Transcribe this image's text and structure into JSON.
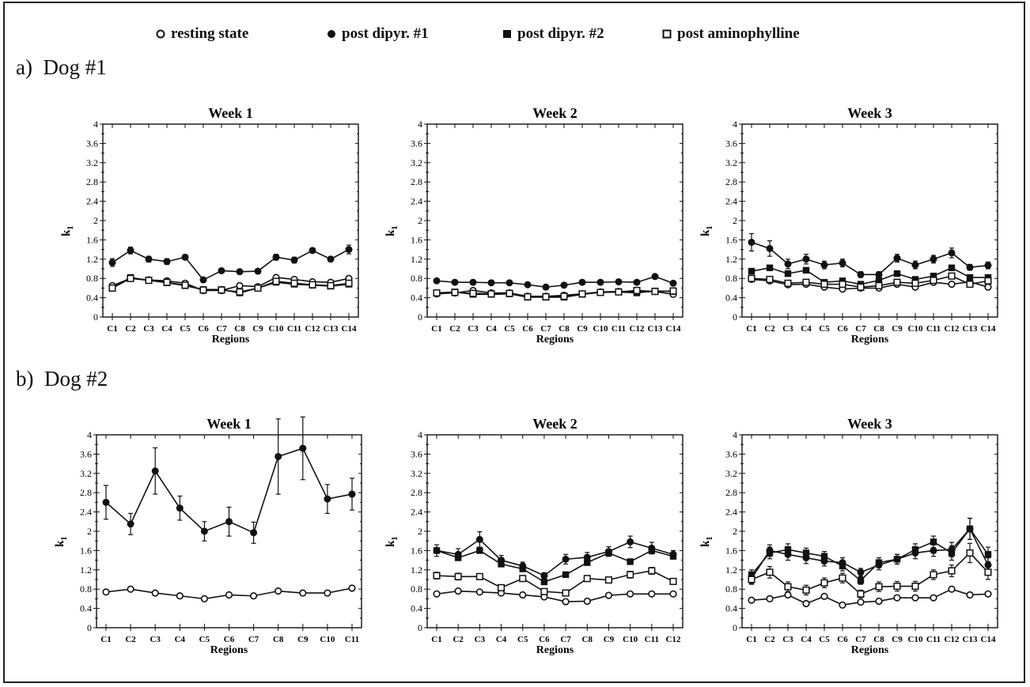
{
  "legend": [
    {
      "label": "resting state",
      "marker": "circle-open"
    },
    {
      "label": "post dipyr. #1",
      "marker": "circle-filled"
    },
    {
      "label": "post dipyr. #2",
      "marker": "square-filled"
    },
    {
      "label": "post aminophylline",
      "marker": "square-open"
    }
  ],
  "sections": [
    {
      "label": "a)",
      "title": "Dog #1"
    },
    {
      "label": "b)",
      "title": "Dog #2"
    }
  ],
  "chart_data": [
    {
      "type": "line",
      "title": "Week  1",
      "xlabel": "Regions",
      "ylabel": "k1",
      "ylim": [
        0,
        4
      ],
      "yticks": [
        "0",
        "0.4",
        "0.8",
        "1.2",
        "1.6",
        "2",
        "2.4",
        "2.8",
        "3.2",
        "3.6",
        "4"
      ],
      "categories": [
        "C1",
        "C2",
        "C3",
        "C4",
        "C5",
        "C6",
        "C7",
        "C8",
        "C9",
        "C10",
        "C11",
        "C12",
        "C13",
        "C14"
      ],
      "series": [
        {
          "marker": "circle-open",
          "values": [
            0.65,
            0.8,
            0.77,
            0.75,
            0.7,
            0.55,
            0.55,
            0.65,
            0.63,
            0.82,
            0.78,
            0.73,
            0.72,
            0.8
          ]
        },
        {
          "marker": "circle-filled",
          "values": [
            1.13,
            1.38,
            1.2,
            1.15,
            1.24,
            0.77,
            0.96,
            0.94,
            0.95,
            1.24,
            1.18,
            1.38,
            1.2,
            1.4
          ],
          "err": [
            0.08,
            0.07,
            0.06,
            0.06,
            0.05,
            0.03,
            0.03,
            0.03,
            0.03,
            0.06,
            0.06,
            0.05,
            0.05,
            0.09
          ]
        },
        {
          "marker": "square-filled",
          "values": [
            0.6,
            0.82,
            0.76,
            0.71,
            0.65,
            0.57,
            0.57,
            0.5,
            0.6,
            0.72,
            0.68,
            0.66,
            0.64,
            0.68
          ]
        },
        {
          "marker": "square-open",
          "values": [
            0.6,
            0.8,
            0.76,
            0.72,
            0.66,
            0.56,
            0.56,
            0.52,
            0.6,
            0.74,
            0.7,
            0.67,
            0.65,
            0.7
          ]
        }
      ]
    },
    {
      "type": "line",
      "title": "Week  2",
      "xlabel": "Regions",
      "ylabel": "k1",
      "ylim": [
        0,
        4
      ],
      "yticks": [
        "0",
        "0.4",
        "0.8",
        "1.2",
        "1.6",
        "2",
        "2.4",
        "2.8",
        "3.2",
        "3.6",
        "4"
      ],
      "categories": [
        "C1",
        "C2",
        "C3",
        "C4",
        "C5",
        "C6",
        "C7",
        "C8",
        "C9",
        "C10",
        "C11",
        "C12",
        "C13",
        "C14"
      ],
      "series": [
        {
          "marker": "circle-open",
          "values": [
            0.48,
            0.5,
            0.55,
            0.5,
            0.5,
            0.43,
            0.43,
            0.45,
            0.48,
            0.52,
            0.53,
            0.52,
            0.53,
            0.47
          ]
        },
        {
          "marker": "circle-filled",
          "values": [
            0.75,
            0.72,
            0.72,
            0.71,
            0.71,
            0.67,
            0.62,
            0.66,
            0.72,
            0.72,
            0.73,
            0.72,
            0.84,
            0.7
          ]
        },
        {
          "marker": "square-filled",
          "values": [
            0.5,
            0.52,
            0.47,
            0.47,
            0.48,
            0.41,
            0.41,
            0.41,
            0.47,
            0.51,
            0.52,
            0.5,
            0.54,
            0.53
          ]
        },
        {
          "marker": "square-open",
          "values": [
            0.5,
            0.51,
            0.49,
            0.48,
            0.49,
            0.42,
            0.42,
            0.43,
            0.48,
            0.51,
            0.52,
            0.55,
            0.53,
            0.54
          ]
        }
      ]
    },
    {
      "type": "line",
      "title": "Week  3",
      "xlabel": "Regions",
      "ylabel": "k1",
      "ylim": [
        0,
        4
      ],
      "yticks": [
        "0",
        "0.4",
        "0.8",
        "1.2",
        "1.6",
        "2",
        "2.4",
        "2.8",
        "3.2",
        "3.6",
        "4"
      ],
      "categories": [
        "C1",
        "C2",
        "C3",
        "C4",
        "C5",
        "C6",
        "C7",
        "C8",
        "C9",
        "C10",
        "C11",
        "C12",
        "C13",
        "C14"
      ],
      "series": [
        {
          "marker": "circle-open",
          "values": [
            0.78,
            0.75,
            0.67,
            0.68,
            0.62,
            0.58,
            0.6,
            0.6,
            0.68,
            0.62,
            0.72,
            0.68,
            0.73,
            0.62
          ]
        },
        {
          "marker": "circle-filled",
          "values": [
            1.55,
            1.42,
            1.1,
            1.2,
            1.08,
            1.12,
            0.88,
            0.88,
            1.22,
            1.08,
            1.2,
            1.33,
            1.03,
            1.07
          ],
          "err": [
            0.18,
            0.16,
            0.1,
            0.1,
            0.08,
            0.08,
            0.06,
            0.06,
            0.08,
            0.08,
            0.08,
            0.1,
            0.06,
            0.07
          ]
        },
        {
          "marker": "square-filled",
          "values": [
            0.95,
            1.02,
            0.9,
            0.97,
            0.72,
            0.75,
            0.68,
            0.76,
            0.9,
            0.78,
            0.85,
            1.02,
            0.82,
            0.82
          ]
        },
        {
          "marker": "square-open",
          "values": [
            0.8,
            0.78,
            0.7,
            0.72,
            0.68,
            0.68,
            0.62,
            0.65,
            0.72,
            0.7,
            0.76,
            0.85,
            0.68,
            0.75
          ]
        }
      ]
    },
    {
      "type": "line",
      "title": "Week  1",
      "xlabel": "Regions",
      "ylabel": "k1",
      "ylim": [
        0,
        4
      ],
      "yticks": [
        "0",
        "0.4",
        "0.8",
        "1.2",
        "1.6",
        "2",
        "2.4",
        "2.8",
        "3.2",
        "3.6",
        "4"
      ],
      "categories": [
        "C1",
        "C2",
        "C3",
        "C4",
        "C5",
        "C6",
        "C7",
        "C8",
        "C9",
        "C10",
        "C11"
      ],
      "series": [
        {
          "marker": "circle-open",
          "values": [
            0.74,
            0.8,
            0.72,
            0.66,
            0.6,
            0.68,
            0.66,
            0.76,
            0.72,
            0.72,
            0.82
          ]
        },
        {
          "marker": "circle-filled",
          "values": [
            2.6,
            2.15,
            3.25,
            2.48,
            2.0,
            2.2,
            1.97,
            3.55,
            3.72,
            2.67,
            2.77
          ],
          "err": [
            0.35,
            0.22,
            0.48,
            0.25,
            0.2,
            0.3,
            0.22,
            0.78,
            0.65,
            0.3,
            0.33
          ]
        }
      ]
    },
    {
      "type": "line",
      "title": "Week  2",
      "xlabel": "Regions",
      "ylabel": "k1",
      "ylim": [
        0,
        4
      ],
      "yticks": [
        "0",
        "0.4",
        "0.8",
        "1.2",
        "1.6",
        "2",
        "2.4",
        "2.8",
        "3.2",
        "3.6",
        "4"
      ],
      "categories": [
        "C1",
        "C2",
        "C3",
        "C4",
        "C5",
        "C6",
        "C7",
        "C8",
        "C9",
        "C10",
        "C11",
        "C12"
      ],
      "series": [
        {
          "marker": "circle-open",
          "values": [
            0.7,
            0.76,
            0.74,
            0.72,
            0.68,
            0.64,
            0.54,
            0.55,
            0.67,
            0.7,
            0.7,
            0.7
          ]
        },
        {
          "marker": "circle-filled",
          "values": [
            1.6,
            1.52,
            1.83,
            1.4,
            1.28,
            1.08,
            1.42,
            1.46,
            1.58,
            1.78,
            1.65,
            1.52
          ],
          "err": [
            0.12,
            0.12,
            0.16,
            0.1,
            0.08,
            0.06,
            0.1,
            0.1,
            0.1,
            0.12,
            0.12,
            0.08
          ]
        },
        {
          "marker": "square-filled",
          "values": [
            1.6,
            1.45,
            1.6,
            1.32,
            1.22,
            0.95,
            1.1,
            1.35,
            1.55,
            1.37,
            1.6,
            1.48
          ]
        },
        {
          "marker": "square-open",
          "values": [
            1.08,
            1.06,
            1.06,
            0.83,
            1.02,
            0.75,
            0.72,
            1.02,
            0.99,
            1.1,
            1.18,
            0.96
          ],
          "err": [
            0.07,
            0.07,
            0.06,
            0.05,
            0.06,
            0.05,
            0.05,
            0.06,
            0.06,
            0.07,
            0.07,
            0.06
          ]
        }
      ]
    },
    {
      "type": "line",
      "title": "Week  3",
      "xlabel": "Regions",
      "ylabel": "k1",
      "ylim": [
        0,
        4
      ],
      "yticks": [
        "0",
        "0.4",
        "0.8",
        "1.2",
        "1.6",
        "2",
        "2.4",
        "2.8",
        "3.2",
        "3.6",
        "4"
      ],
      "categories": [
        "C1",
        "C2",
        "C3",
        "C4",
        "C5",
        "C6",
        "C7",
        "C8",
        "C9",
        "C10",
        "C11",
        "C12",
        "C13",
        "C14"
      ],
      "series": [
        {
          "marker": "circle-open",
          "values": [
            0.57,
            0.6,
            0.68,
            0.5,
            0.65,
            0.47,
            0.53,
            0.55,
            0.62,
            0.62,
            0.62,
            0.8,
            0.68,
            0.7
          ]
        },
        {
          "marker": "circle-filled",
          "values": [
            1.02,
            1.6,
            1.52,
            1.45,
            1.38,
            1.35,
            1.15,
            1.3,
            1.42,
            1.55,
            1.6,
            1.62,
            2.05,
            1.3
          ],
          "err": [
            0.1,
            0.12,
            0.12,
            0.12,
            0.1,
            0.1,
            0.08,
            0.1,
            0.1,
            0.12,
            0.12,
            0.15,
            0.22,
            0.15
          ]
        },
        {
          "marker": "square-filled",
          "values": [
            1.1,
            1.55,
            1.62,
            1.55,
            1.48,
            1.28,
            0.98,
            1.35,
            1.42,
            1.62,
            1.78,
            1.55,
            2.05,
            1.52
          ],
          "err": [
            0.1,
            0.12,
            0.12,
            0.1,
            0.1,
            0.1,
            0.08,
            0.1,
            0.1,
            0.12,
            0.12,
            0.15,
            0.22,
            0.15
          ]
        },
        {
          "marker": "square-open",
          "values": [
            1.0,
            1.15,
            0.85,
            0.78,
            0.93,
            1.03,
            0.7,
            0.85,
            0.86,
            0.86,
            1.1,
            1.18,
            1.55,
            1.15
          ],
          "err": [
            0.1,
            0.12,
            0.1,
            0.1,
            0.1,
            0.1,
            0.08,
            0.1,
            0.1,
            0.1,
            0.1,
            0.12,
            0.2,
            0.15
          ]
        }
      ]
    }
  ]
}
